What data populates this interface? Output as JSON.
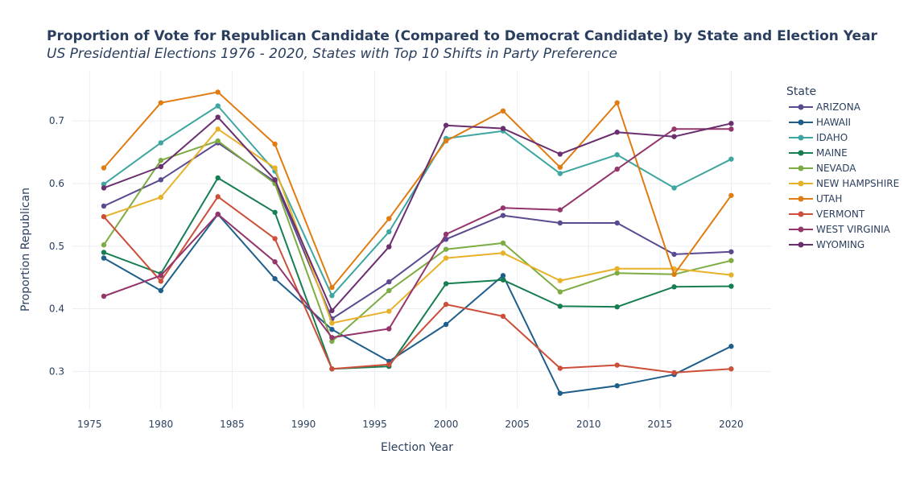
{
  "chart_data": {
    "type": "line",
    "title": "Proportion of Vote for Republican Candidate (Compared to Democrat Candidate) by State and Election Year",
    "subtitle": "US Presidential Elections 1976 - 2020, States with Top 10 Shifts in Party Preference",
    "xlabel": "Election Year",
    "ylabel": "Proportion Republican",
    "legend_title": "State",
    "legend_position": "right",
    "xlim": [
      1973.8,
      2022.8
    ],
    "ylim": [
      0.24,
      0.78
    ],
    "xticks": [
      1975,
      1980,
      1985,
      1990,
      1995,
      2000,
      2005,
      2010,
      2015,
      2020
    ],
    "yticks": [
      0.3,
      0.4,
      0.5,
      0.6,
      0.7
    ],
    "ytick_labels": [
      "0.3",
      "0.4",
      "0.5",
      "0.6",
      "0.7"
    ],
    "grid": true,
    "x": [
      1976,
      1980,
      1984,
      1988,
      1992,
      1996,
      2000,
      2004,
      2008,
      2012,
      2016,
      2020
    ],
    "series": [
      {
        "name": "ARIZONA",
        "color": "#5c4a91",
        "values": [
          0.564,
          0.606,
          0.665,
          0.603,
          0.384,
          0.443,
          0.511,
          0.549,
          0.537,
          0.537,
          0.487,
          0.491
        ]
      },
      {
        "name": "HAWAII",
        "color": "#1f5f8b",
        "values": [
          0.481,
          0.429,
          0.551,
          0.448,
          0.367,
          0.316,
          0.375,
          0.453,
          0.265,
          0.277,
          0.295,
          0.34
        ]
      },
      {
        "name": "IDAHO",
        "color": "#3ea6a0",
        "values": [
          0.599,
          0.665,
          0.724,
          0.62,
          0.421,
          0.523,
          0.672,
          0.684,
          0.616,
          0.646,
          0.593,
          0.639
        ]
      },
      {
        "name": "MAINE",
        "color": "#177e52",
        "values": [
          0.49,
          0.456,
          0.609,
          0.554,
          0.304,
          0.308,
          0.44,
          0.446,
          0.404,
          0.403,
          0.435,
          0.436
        ]
      },
      {
        "name": "NEVADA",
        "color": "#7cac42",
        "values": [
          0.502,
          0.637,
          0.668,
          0.6,
          0.348,
          0.429,
          0.495,
          0.505,
          0.427,
          0.457,
          0.455,
          0.477
        ]
      },
      {
        "name": "NEW HAMPSHIRE",
        "color": "#e8b12a",
        "values": [
          0.547,
          0.578,
          0.687,
          0.625,
          0.377,
          0.396,
          0.481,
          0.489,
          0.445,
          0.464,
          0.464,
          0.454
        ]
      },
      {
        "name": "UTAH",
        "color": "#e07c12",
        "values": [
          0.625,
          0.729,
          0.746,
          0.663,
          0.434,
          0.544,
          0.668,
          0.716,
          0.626,
          0.729,
          0.455,
          0.581
        ]
      },
      {
        "name": "VERMONT",
        "color": "#cc4f3a",
        "values": [
          0.547,
          0.444,
          0.579,
          0.512,
          0.304,
          0.311,
          0.407,
          0.388,
          0.305,
          0.31,
          0.298,
          0.304
        ]
      },
      {
        "name": "WEST VIRGINIA",
        "color": "#94356b",
        "values": [
          0.42,
          0.453,
          0.551,
          0.475,
          0.354,
          0.368,
          0.519,
          0.561,
          0.558,
          0.623,
          0.687,
          0.687
        ]
      },
      {
        "name": "WYOMING",
        "color": "#6a2f6e",
        "values": [
          0.593,
          0.627,
          0.706,
          0.606,
          0.397,
          0.499,
          0.693,
          0.688,
          0.647,
          0.682,
          0.675,
          0.696
        ]
      }
    ]
  }
}
